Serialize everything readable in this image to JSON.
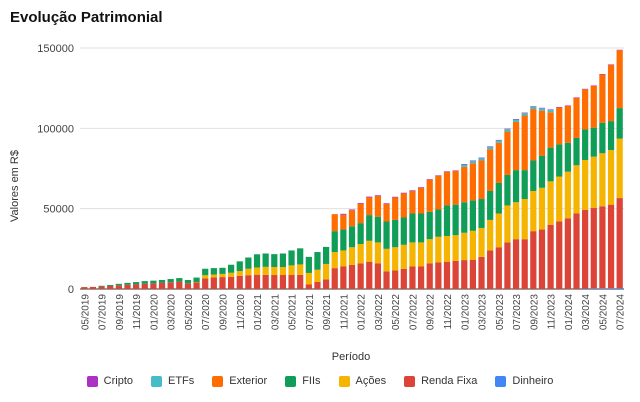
{
  "title": "Evolução Patrimonial",
  "chart_data": {
    "type": "bar",
    "stacked": true,
    "title": "Evolução Patrimonial",
    "xlabel": "Período",
    "ylabel": "Valores em R$",
    "ylim": [
      0,
      150000
    ],
    "yticks": [
      0,
      50000,
      100000,
      150000
    ],
    "ytick_labels": [
      "0",
      "50000",
      "100000",
      "150000"
    ],
    "grid": true,
    "legend_position": "bottom",
    "categories": [
      "05/2019",
      "06/2019",
      "07/2019",
      "08/2019",
      "09/2019",
      "10/2019",
      "11/2019",
      "12/2019",
      "01/2020",
      "02/2020",
      "03/2020",
      "04/2020",
      "05/2020",
      "06/2020",
      "07/2020",
      "08/2020",
      "09/2020",
      "10/2020",
      "11/2020",
      "12/2020",
      "01/2021",
      "02/2021",
      "03/2021",
      "04/2021",
      "05/2021",
      "06/2021",
      "07/2021",
      "08/2021",
      "09/2021",
      "10/2021",
      "11/2021",
      "12/2021",
      "01/2022",
      "02/2022",
      "03/2022",
      "04/2022",
      "05/2022",
      "06/2022",
      "07/2022",
      "08/2022",
      "09/2022",
      "10/2022",
      "11/2022",
      "12/2022",
      "01/2023",
      "02/2023",
      "03/2023",
      "04/2023",
      "05/2023",
      "06/2023",
      "07/2023",
      "08/2023",
      "09/2023",
      "10/2023",
      "11/2023",
      "12/2023",
      "01/2024",
      "02/2024",
      "03/2024",
      "04/2024",
      "05/2024",
      "06/2024",
      "07/2024"
    ],
    "xtick_labels": [
      "05/2019",
      "07/2019",
      "09/2019",
      "11/2019",
      "01/2020",
      "03/2020",
      "05/2020",
      "07/2020",
      "09/2020",
      "11/2020",
      "01/2021",
      "03/2021",
      "05/2021",
      "07/2021",
      "09/2021",
      "11/2021",
      "01/2022",
      "03/2022",
      "05/2022",
      "07/2022",
      "09/2022",
      "11/2022",
      "01/2023",
      "03/2023",
      "05/2023",
      "07/2023",
      "09/2023",
      "11/2023",
      "01/2024",
      "03/2024",
      "05/2024",
      "07/2024"
    ],
    "series": [
      {
        "name": "Dinheiro",
        "color": "#4285f4",
        "values": [
          0,
          0,
          0,
          0,
          0,
          0,
          0,
          0,
          0,
          0,
          0,
          0,
          0,
          0,
          0,
          0,
          0,
          0,
          0,
          0,
          0,
          0,
          0,
          0,
          0,
          0,
          0,
          0,
          0,
          0,
          0,
          0,
          0,
          0,
          0,
          0,
          0,
          0,
          0,
          0,
          0,
          0,
          0,
          0,
          0,
          0,
          0,
          0,
          0,
          0,
          0,
          0,
          0,
          0,
          0,
          0,
          0,
          0,
          300,
          400,
          500,
          500,
          600
        ]
      },
      {
        "name": "Renda Fixa",
        "color": "#db4437",
        "values": [
          1200,
          1300,
          1600,
          1900,
          2300,
          2600,
          2900,
          3300,
          3500,
          3800,
          4200,
          4600,
          3600,
          4200,
          6600,
          7200,
          7400,
          7600,
          8200,
          8600,
          8900,
          8800,
          8700,
          8700,
          8700,
          8800,
          2800,
          4400,
          6000,
          13000,
          14000,
          15000,
          16000,
          17000,
          16000,
          11000,
          11500,
          12500,
          14000,
          14000,
          16000,
          16500,
          17000,
          17500,
          18000,
          18200,
          20000,
          24000,
          26000,
          29000,
          31000,
          31000,
          36000,
          37000,
          40000,
          42000,
          44000,
          47000,
          49000,
          50000,
          51000,
          52000,
          56000
        ]
      },
      {
        "name": "Ações",
        "color": "#f4b400",
        "values": [
          0,
          0,
          0,
          0,
          0,
          0,
          0,
          0,
          0,
          0,
          0,
          0,
          0,
          100,
          2000,
          1800,
          2000,
          2500,
          3000,
          4000,
          4500,
          5000,
          5000,
          5000,
          6000,
          6500,
          7200,
          7600,
          9600,
          10000,
          10000,
          11000,
          12000,
          13000,
          13000,
          14000,
          14500,
          15000,
          15000,
          15000,
          15000,
          16000,
          16000,
          16000,
          17000,
          18000,
          18000,
          19000,
          21000,
          23000,
          23000,
          25000,
          25000,
          26000,
          27000,
          28000,
          29000,
          30000,
          31000,
          32000,
          33000,
          34000,
          37000
        ]
      },
      {
        "name": "FIIs",
        "color": "#0f9d58",
        "values": [
          0,
          0,
          400,
          600,
          900,
          1200,
          1400,
          1600,
          1700,
          1800,
          2000,
          2200,
          2000,
          2800,
          4000,
          4000,
          3800,
          5000,
          6000,
          7000,
          8200,
          8300,
          8000,
          8400,
          9300,
          10000,
          10000,
          11000,
          10600,
          13000,
          13000,
          13000,
          13000,
          16000,
          16000,
          17000,
          17000,
          17000,
          18000,
          18000,
          17000,
          17000,
          19000,
          19000,
          19000,
          19000,
          18000,
          18000,
          19000,
          19000,
          20000,
          18000,
          19000,
          20000,
          21000,
          20000,
          18000,
          17000,
          19000,
          18000,
          19000,
          18000,
          19000
        ]
      },
      {
        "name": "Exterior",
        "color": "#ff6d01",
        "values": [
          0,
          0,
          0,
          0,
          0,
          0,
          0,
          0,
          0,
          0,
          0,
          0,
          0,
          0,
          0,
          0,
          0,
          0,
          0,
          0,
          0,
          0,
          0,
          0,
          0,
          0,
          0,
          0,
          0,
          10600,
          9200,
          10000,
          12000,
          11000,
          13000,
          11000,
          14000,
          15000,
          14000,
          16000,
          20000,
          21000,
          21000,
          21000,
          22000,
          23000,
          24000,
          26000,
          25000,
          27000,
          30000,
          34000,
          32000,
          28000,
          22000,
          23000,
          23000,
          25000,
          25000,
          26000,
          30000,
          35000,
          36000
        ]
      },
      {
        "name": "ETFs",
        "color": "#46bdc6",
        "values": [
          0,
          0,
          0,
          0,
          0,
          0,
          0,
          0,
          0,
          0,
          0,
          0,
          0,
          0,
          0,
          0,
          0,
          0,
          0,
          0,
          0,
          0,
          0,
          0,
          0,
          0,
          0,
          0,
          0,
          0,
          0,
          0,
          0,
          0,
          0,
          0,
          0,
          0,
          0,
          0,
          0,
          0,
          0,
          0,
          1500,
          1500,
          1500,
          1500,
          1500,
          1500,
          1500,
          1500,
          1500,
          1500,
          1500,
          0,
          0,
          0,
          0,
          0,
          0,
          0,
          0
        ]
      },
      {
        "name": "Cripto",
        "color": "#ab30c4",
        "values": [
          0,
          0,
          0,
          0,
          0,
          0,
          0,
          0,
          0,
          0,
          0,
          0,
          0,
          0,
          0,
          0,
          0,
          0,
          0,
          0,
          0,
          0,
          0,
          0,
          0,
          0,
          0,
          0,
          0,
          0,
          600,
          500,
          500,
          500,
          400,
          400,
          400,
          400,
          400,
          400,
          400,
          300,
          300,
          300,
          300,
          300,
          300,
          300,
          300,
          300,
          300,
          300,
          300,
          300,
          300,
          300,
          300,
          300,
          300,
          300,
          300,
          300,
          300
        ]
      }
    ]
  }
}
